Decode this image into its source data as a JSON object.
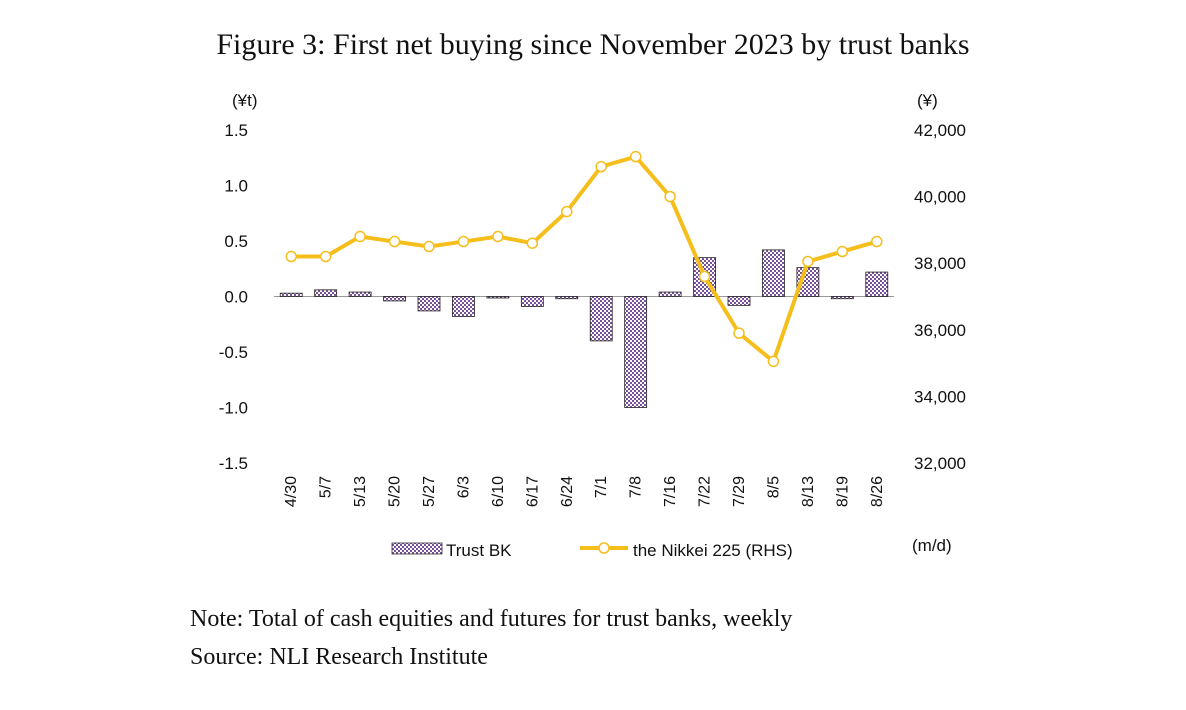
{
  "figure": {
    "title": "Figure 3: First net buying since November 2023 by trust banks",
    "note": "Note: Total of cash equities and futures for trust banks, weekly",
    "source": "Source: NLI Research Institute"
  },
  "chart_data": {
    "type": "bar",
    "title": "Figure 3: First net buying since November 2023 by trust banks",
    "categories": [
      "4/30",
      "5/7",
      "5/13",
      "5/20",
      "5/27",
      "6/3",
      "6/10",
      "6/17",
      "6/24",
      "7/1",
      "7/8",
      "7/16",
      "7/22",
      "7/29",
      "8/5",
      "8/13",
      "8/19",
      "8/26"
    ],
    "left_axis": {
      "unit": "(¥t)",
      "ylim": [
        -1.5,
        1.5
      ],
      "ticks": [
        "1.5",
        "1.0",
        "0.5",
        "0.0",
        "-0.5",
        "-1.0",
        "-1.5"
      ]
    },
    "right_axis": {
      "unit": "(¥)",
      "ylim": [
        32000,
        42000
      ],
      "ticks": [
        "42,000",
        "40,000",
        "38,000",
        "36,000",
        "34,000",
        "32,000"
      ]
    },
    "xlabel": "(m/d)",
    "series": [
      {
        "name": "Trust BK",
        "type": "bar",
        "axis": "left",
        "color": "#7a4f9a",
        "values": [
          0.03,
          0.06,
          0.04,
          -0.04,
          -0.13,
          -0.18,
          -0.01,
          -0.09,
          -0.02,
          -0.4,
          -1.0,
          0.04,
          0.35,
          -0.08,
          0.42,
          0.26,
          -0.02,
          0.22
        ]
      },
      {
        "name": "the Nikkei 225 (RHS)",
        "type": "line",
        "axis": "right",
        "color": "#f5be1b",
        "values": [
          38200,
          38200,
          38800,
          38650,
          38500,
          38650,
          38800,
          38600,
          39550,
          40900,
          41200,
          40000,
          37600,
          35900,
          35050,
          38050,
          38350,
          38650
        ]
      }
    ],
    "legend_position": "bottom"
  }
}
